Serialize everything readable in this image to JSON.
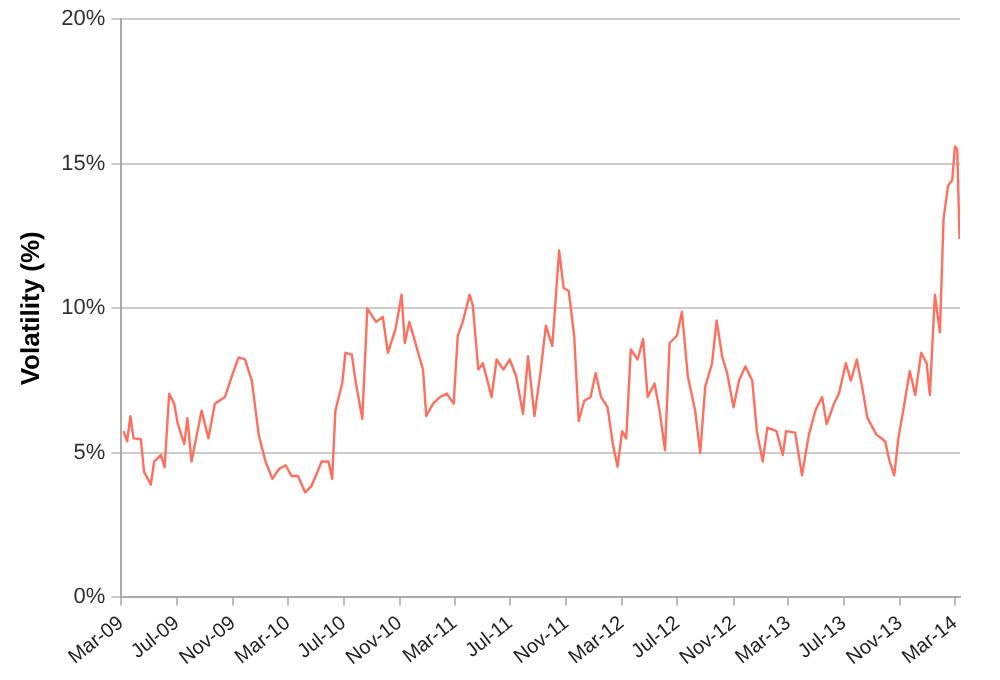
{
  "chart_data": {
    "type": "line",
    "ylabel": "Volatility (%)",
    "grid": "y",
    "legend": false,
    "marker": "none",
    "line_style": "solid",
    "xlim": [
      "2009-03-01",
      "2014-03-12"
    ],
    "xticks": [
      {
        "value": "2009-03-01",
        "label": "Mar-09"
      },
      {
        "value": "2009-07-01",
        "label": "Jul-09"
      },
      {
        "value": "2009-11-01",
        "label": "Nov-09"
      },
      {
        "value": "2010-03-01",
        "label": "Mar-10"
      },
      {
        "value": "2010-07-01",
        "label": "Jul-10"
      },
      {
        "value": "2010-11-01",
        "label": "Nov-10"
      },
      {
        "value": "2011-03-01",
        "label": "Mar-11"
      },
      {
        "value": "2011-07-01",
        "label": "Jul-11"
      },
      {
        "value": "2011-11-01",
        "label": "Nov-11"
      },
      {
        "value": "2012-03-01",
        "label": "Mar-12"
      },
      {
        "value": "2012-07-01",
        "label": "Jul-12"
      },
      {
        "value": "2012-11-01",
        "label": "Nov-12"
      },
      {
        "value": "2013-03-01",
        "label": "Mar-13"
      },
      {
        "value": "2013-07-01",
        "label": "Jul-13"
      },
      {
        "value": "2013-11-01",
        "label": "Nov-13"
      },
      {
        "value": "2014-03-01",
        "label": "Mar-14"
      }
    ],
    "ylim": [
      0,
      20
    ],
    "yticks": [
      {
        "value": 0,
        "label": "0%"
      },
      {
        "value": 5,
        "label": "5%"
      },
      {
        "value": 10,
        "label": "10%"
      },
      {
        "value": 15,
        "label": "15%"
      },
      {
        "value": 20,
        "label": "20%"
      }
    ],
    "x": [
      "2009-03-06",
      "2009-03-14",
      "2009-03-21",
      "2009-03-28",
      "2009-04-13",
      "2009-04-20",
      "2009-05-05",
      "2009-05-12",
      "2009-05-27",
      "2009-06-04",
      "2009-06-14",
      "2009-06-25",
      "2009-07-03",
      "2009-07-17",
      "2009-07-24",
      "2009-08-02",
      "2009-08-24",
      "2009-09-08",
      "2009-09-22",
      "2009-10-14",
      "2009-10-29",
      "2009-11-13",
      "2009-11-27",
      "2009-12-12",
      "2009-12-27",
      "2010-01-11",
      "2010-01-26",
      "2010-02-10",
      "2010-02-24",
      "2010-03-09",
      "2010-03-23",
      "2010-04-08",
      "2010-04-22",
      "2010-05-14",
      "2010-05-29",
      "2010-06-06",
      "2010-06-13",
      "2010-06-28",
      "2010-07-05",
      "2010-07-19",
      "2010-07-27",
      "2010-08-11",
      "2010-08-22",
      "2010-09-10",
      "2010-09-25",
      "2010-10-06",
      "2010-10-23",
      "2010-11-05",
      "2010-11-12",
      "2010-11-22",
      "2010-12-07",
      "2010-12-22",
      "2010-12-29",
      "2011-01-13",
      "2011-01-28",
      "2011-02-12",
      "2011-02-27",
      "2011-03-08",
      "2011-03-19",
      "2011-04-03",
      "2011-04-10",
      "2011-04-22",
      "2011-05-02",
      "2011-05-12",
      "2011-05-21",
      "2011-06-01",
      "2011-06-16",
      "2011-06-30",
      "2011-07-14",
      "2011-07-29",
      "2011-08-09",
      "2011-08-23",
      "2011-09-05",
      "2011-09-17",
      "2011-10-01",
      "2011-10-07",
      "2011-10-16",
      "2011-10-26",
      "2011-11-06",
      "2011-11-18",
      "2011-11-28",
      "2011-12-10",
      "2011-12-24",
      "2012-01-04",
      "2012-01-16",
      "2012-01-30",
      "2012-02-11",
      "2012-02-21",
      "2012-03-02",
      "2012-03-11",
      "2012-03-21",
      "2012-04-05",
      "2012-04-17",
      "2012-04-27",
      "2012-05-12",
      "2012-05-23",
      "2012-06-04",
      "2012-06-14",
      "2012-06-30",
      "2012-07-11",
      "2012-07-24",
      "2012-08-09",
      "2012-08-20",
      "2012-08-31",
      "2012-09-15",
      "2012-09-25",
      "2012-10-07",
      "2012-10-18",
      "2012-11-01",
      "2012-11-13",
      "2012-11-27",
      "2012-12-12",
      "2012-12-22",
      "2013-01-04",
      "2013-01-14",
      "2013-02-03",
      "2013-02-17",
      "2013-02-24",
      "2013-03-16",
      "2013-03-31",
      "2013-04-15",
      "2013-04-30",
      "2013-05-14",
      "2013-05-24",
      "2013-06-09",
      "2013-06-20",
      "2013-07-05",
      "2013-07-16",
      "2013-07-29",
      "2013-08-11",
      "2013-08-21",
      "2013-09-10",
      "2013-09-29",
      "2013-10-09",
      "2013-10-19",
      "2013-10-28",
      "2013-11-08",
      "2013-11-22",
      "2013-12-04",
      "2013-12-17",
      "2013-12-29",
      "2014-01-05",
      "2014-01-16",
      "2014-01-27",
      "2014-02-04",
      "2014-02-14",
      "2014-02-23",
      "2014-03-01",
      "2014-03-06",
      "2014-03-11"
    ],
    "series": [
      {
        "color": "#ff6f5e",
        "values": [
          5.75,
          5.4,
          6.27,
          5.5,
          5.47,
          4.34,
          3.9,
          4.7,
          4.93,
          4.5,
          7.05,
          6.7,
          6.0,
          5.3,
          6.2,
          4.7,
          6.46,
          5.5,
          6.7,
          6.93,
          7.64,
          8.3,
          8.23,
          7.5,
          5.63,
          4.7,
          4.1,
          4.45,
          4.57,
          4.2,
          4.2,
          3.63,
          3.86,
          4.7,
          4.7,
          4.1,
          6.46,
          7.4,
          8.46,
          8.4,
          7.5,
          6.18,
          10.0,
          9.53,
          9.7,
          8.46,
          9.3,
          10.47,
          8.8,
          9.53,
          8.7,
          7.88,
          6.27,
          6.7,
          6.93,
          7.05,
          6.7,
          9.05,
          9.53,
          10.47,
          10.1,
          7.88,
          8.1,
          7.5,
          6.93,
          8.23,
          7.88,
          8.23,
          7.64,
          6.34,
          8.34,
          6.27,
          7.76,
          9.4,
          8.7,
          10.0,
          12.0,
          10.7,
          10.6,
          9.05,
          6.1,
          6.8,
          6.93,
          7.76,
          6.93,
          6.58,
          5.28,
          4.52,
          5.75,
          5.5,
          8.58,
          8.23,
          8.94,
          6.93,
          7.4,
          6.46,
          5.09,
          8.8,
          9.05,
          9.88,
          7.64,
          6.46,
          5.0,
          7.28,
          8.1,
          9.58,
          8.34,
          7.76,
          6.58,
          7.5,
          7.99,
          7.5,
          5.75,
          4.7,
          5.87,
          5.75,
          4.93,
          5.75,
          5.7,
          4.22,
          5.63,
          6.5,
          6.93,
          5.99,
          6.7,
          7.05,
          8.1,
          7.5,
          8.23,
          7.17,
          6.22,
          5.63,
          5.4,
          4.7,
          4.22,
          5.5,
          6.5,
          7.83,
          7.0,
          8.46,
          8.1,
          7.0,
          10.47,
          9.17,
          13.1,
          14.25,
          14.43,
          15.6,
          15.5,
          12.4
        ]
      }
    ]
  }
}
